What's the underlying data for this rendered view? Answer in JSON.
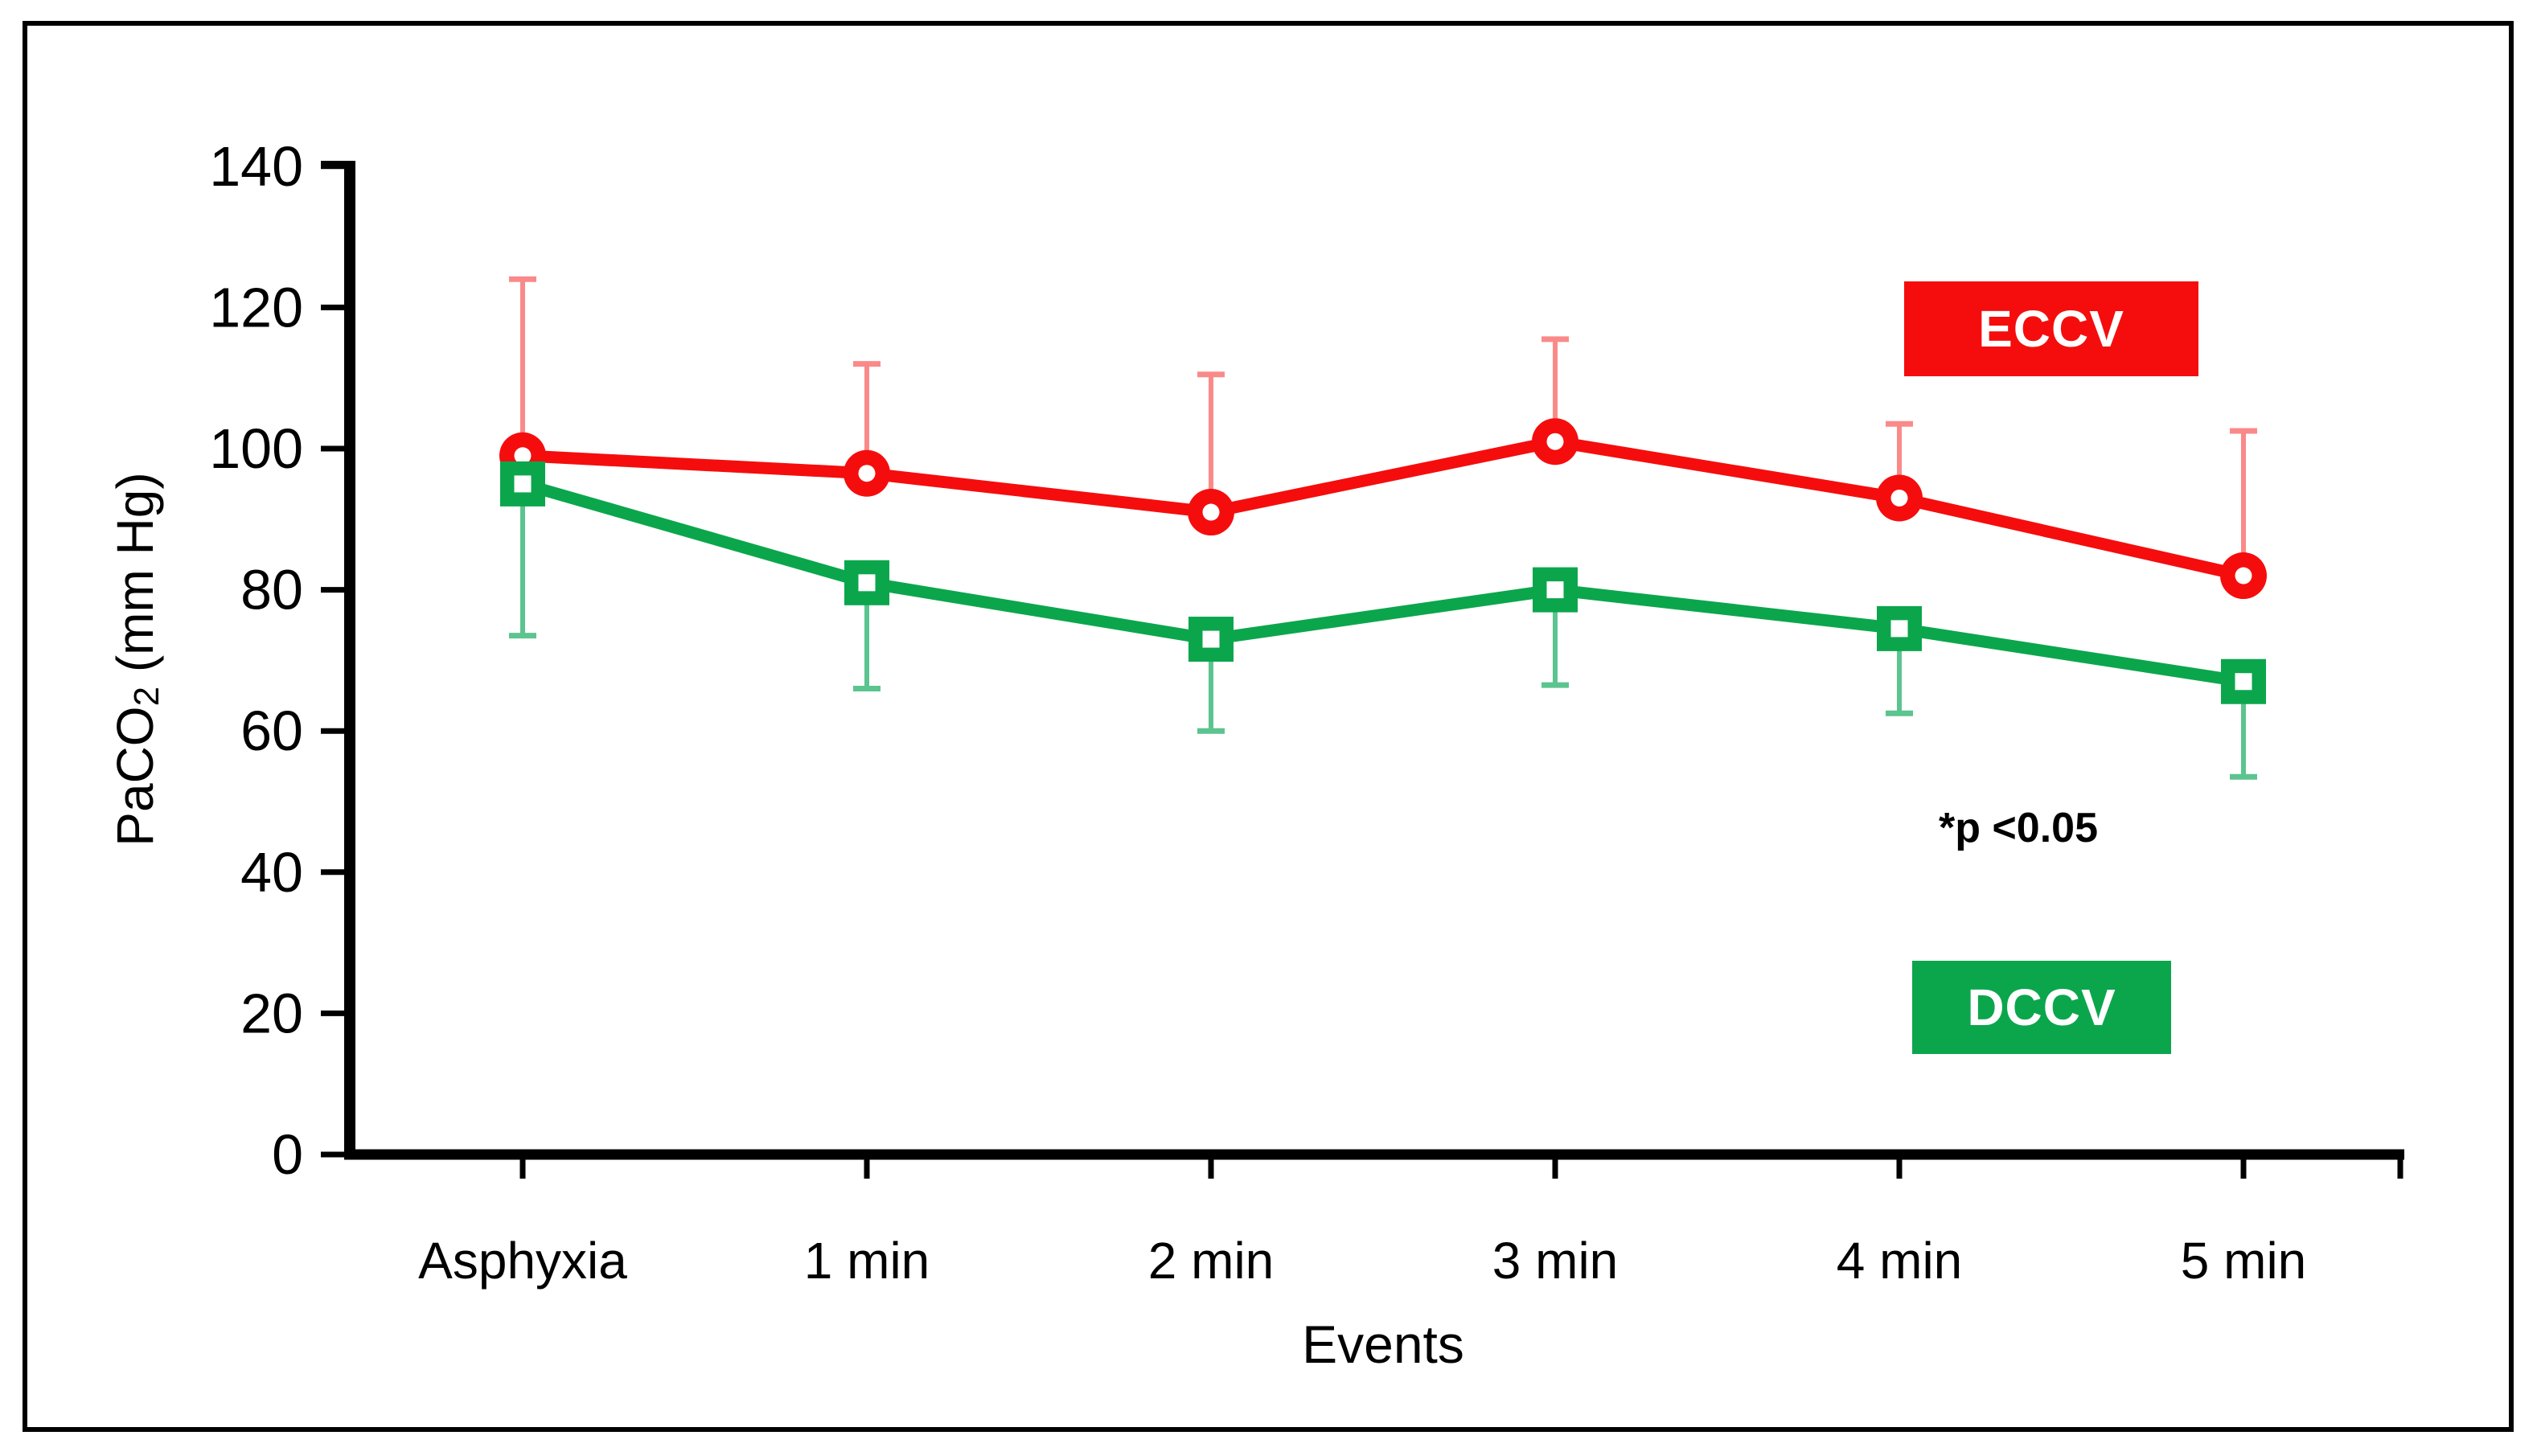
{
  "chart_data": {
    "type": "line",
    "title": "",
    "categories": [
      "Asphyxia",
      "1 min",
      "2 min",
      "3 min",
      "4 min",
      "5 min"
    ],
    "xlabel": "Events",
    "ylabel": "PaCO2 (mm Hg)",
    "ylabel_parts": {
      "main": "PaCO",
      "sub": "2",
      "rest": " (mm Hg)"
    },
    "ylim": [
      0,
      140
    ],
    "yticks": [
      0,
      20,
      40,
      60,
      80,
      100,
      120,
      140
    ],
    "grid": false,
    "legend_position": "inside-right",
    "annotation": "*p <0.05",
    "series": [
      {
        "name": "ECCV",
        "marker": "circle",
        "color": "#F50D0D",
        "error_color": "#FA8A8A",
        "error_direction": "up",
        "values": [
          99,
          96.5,
          91,
          101,
          93,
          82
        ],
        "error_bar_ends": [
          124,
          112,
          110.5,
          115.5,
          103.5,
          102.5
        ]
      },
      {
        "name": "DCCV",
        "marker": "square",
        "color": "#0BA64C",
        "error_color": "#5CC48F",
        "error_direction": "down",
        "values": [
          95,
          81,
          73,
          80,
          74.5,
          67
        ],
        "error_bar_ends": [
          73.5,
          66,
          60,
          66.5,
          62.5,
          53.5
        ]
      }
    ]
  }
}
